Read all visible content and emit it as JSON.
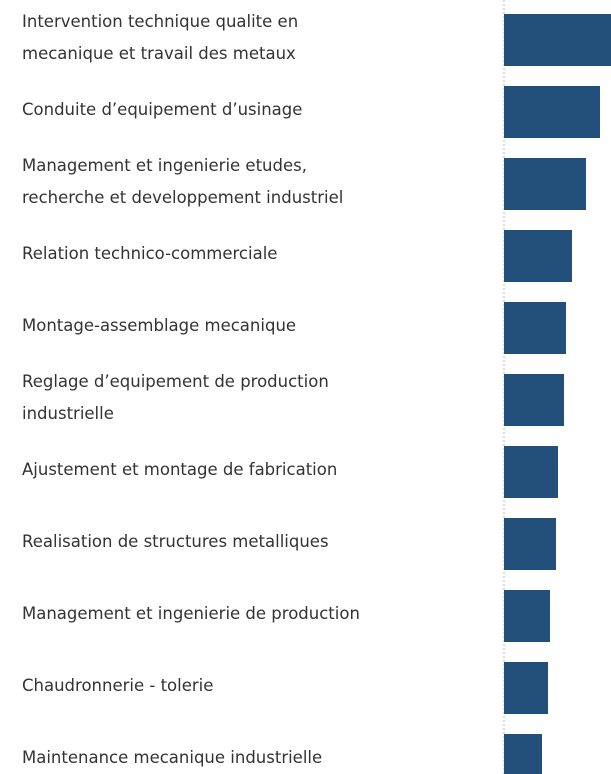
{
  "chart_data": {
    "type": "bar",
    "orientation": "horizontal",
    "categories": [
      "Intervention technique qualite en\nmecanique et travail des metaux",
      "Conduite d’equipement d’usinage",
      "Management et ingenierie etudes,\nrecherche et developpement industriel",
      "Relation technico-commerciale",
      "Montage-assemblage mecanique",
      "Reglage d’equipement de production\nindustrielle",
      "Ajustement et montage de fabrication",
      "Realisation de structures metalliques",
      "Management et ingenierie de production",
      "Chaudronnerie - tolerie",
      "Maintenance mecanique industrielle"
    ],
    "values": [
      110,
      96,
      82,
      68,
      62,
      60,
      54,
      52,
      46,
      44,
      38
    ],
    "color": "#23507a",
    "xlim": [
      0,
      107
    ]
  }
}
